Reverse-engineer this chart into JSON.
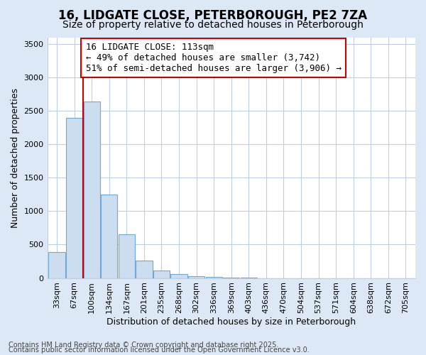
{
  "title1": "16, LIDGATE CLOSE, PETERBOROUGH, PE2 7ZA",
  "title2": "Size of property relative to detached houses in Peterborough",
  "xlabel": "Distribution of detached houses by size in Peterborough",
  "ylabel": "Number of detached properties",
  "annotation_line1": "16 LIDGATE CLOSE: 113sqm",
  "annotation_line2": "← 49% of detached houses are smaller (3,742)",
  "annotation_line3": "51% of semi-detached houses are larger (3,906) →",
  "footer1": "Contains HM Land Registry data © Crown copyright and database right 2025.",
  "footer2": "Contains public sector information licensed under the Open Government Licence v3.0.",
  "categories": [
    "33sqm",
    "67sqm",
    "100sqm",
    "134sqm",
    "167sqm",
    "201sqm",
    "235sqm",
    "268sqm",
    "302sqm",
    "336sqm",
    "369sqm",
    "403sqm",
    "436sqm",
    "470sqm",
    "504sqm",
    "537sqm",
    "571sqm",
    "604sqm",
    "638sqm",
    "672sqm",
    "705sqm"
  ],
  "values": [
    390,
    2400,
    2640,
    1250,
    650,
    265,
    115,
    55,
    25,
    15,
    5,
    3,
    0,
    0,
    0,
    0,
    0,
    0,
    0,
    0,
    0
  ],
  "bar_color": "#ccddf0",
  "bar_edgecolor": "#6fa8d4",
  "vline_color": "#cc0000",
  "vline_x_index": 1.5,
  "annotation_box_color": "#cc0000",
  "annotation_box_facecolor": "white",
  "figure_bg_color": "#dce8f5",
  "plot_bg_color": "#ffffff",
  "ylim": [
    0,
    3600
  ],
  "yticks": [
    0,
    500,
    1000,
    1500,
    2000,
    2500,
    3000,
    3500
  ],
  "grid_color": "#c0cfe0",
  "title_fontsize": 12,
  "subtitle_fontsize": 10,
  "axis_label_fontsize": 9,
  "tick_fontsize": 8,
  "annotation_fontsize": 9,
  "footer_fontsize": 7
}
